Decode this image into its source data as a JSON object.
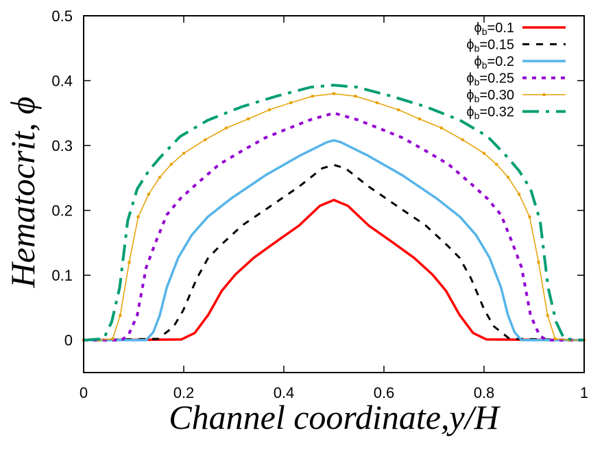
{
  "chart_data": {
    "type": "line",
    "title": "",
    "xlabel": "Channel coordinate,y/H",
    "ylabel": "Hematocrit, ϕ",
    "xlim": [
      0,
      1
    ],
    "ylim": [
      -0.05,
      0.5
    ],
    "xticks": [
      0,
      0.2,
      0.4,
      0.6,
      0.8,
      1
    ],
    "xtick_labels": [
      "0",
      "0.2",
      "0.4",
      "0.6",
      "0.8",
      "1"
    ],
    "yticks": [
      0,
      0.1,
      0.2,
      0.3,
      0.4,
      0.5
    ],
    "ytick_labels": [
      "0",
      "0.1",
      "0.2",
      "0.3",
      "0.4",
      "0.5"
    ],
    "grid": false,
    "legend_position": "top-right",
    "series": [
      {
        "name": "ϕb=0.1",
        "legend_symbol": "ϕ",
        "legend_sub": "b",
        "legend_value": "=0.1",
        "color": "#ff0000",
        "style": "solid",
        "x": [
          0,
          0.195,
          0.222,
          0.249,
          0.276,
          0.303,
          0.34,
          0.385,
          0.431,
          0.472,
          0.5,
          0.528,
          0.569,
          0.615,
          0.66,
          0.697,
          0.724,
          0.751,
          0.778,
          0.805,
          1
        ],
        "y": [
          0,
          0.001,
          0.011,
          0.039,
          0.076,
          0.101,
          0.127,
          0.152,
          0.177,
          0.207,
          0.216,
          0.207,
          0.177,
          0.152,
          0.127,
          0.101,
          0.076,
          0.039,
          0.011,
          0.001,
          0
        ]
      },
      {
        "name": "ϕb=0.15",
        "legend_symbol": "ϕ",
        "legend_sub": "b",
        "legend_value": "=0.15",
        "color": "#000000",
        "style": "dashed",
        "x": [
          0,
          0.149,
          0.18,
          0.199,
          0.226,
          0.249,
          0.272,
          0.317,
          0.363,
          0.431,
          0.477,
          0.5,
          0.523,
          0.569,
          0.637,
          0.683,
          0.728,
          0.751,
          0.774,
          0.801,
          0.82,
          0.851,
          1
        ],
        "y": [
          0,
          0.002,
          0.021,
          0.046,
          0.095,
          0.127,
          0.145,
          0.177,
          0.201,
          0.237,
          0.265,
          0.27,
          0.265,
          0.237,
          0.201,
          0.177,
          0.145,
          0.127,
          0.095,
          0.046,
          0.021,
          0.002,
          0
        ]
      },
      {
        "name": "ϕb=0.2",
        "legend_symbol": "ϕ",
        "legend_sub": "b",
        "legend_value": "=0.2",
        "color": "#56b4e9",
        "style": "solid",
        "x": [
          0,
          0.125,
          0.139,
          0.152,
          0.166,
          0.189,
          0.216,
          0.248,
          0.294,
          0.363,
          0.431,
          0.486,
          0.5,
          0.514,
          0.569,
          0.637,
          0.706,
          0.752,
          0.784,
          0.811,
          0.834,
          0.848,
          0.861,
          0.875,
          1
        ],
        "y": [
          0,
          0,
          0.012,
          0.038,
          0.081,
          0.127,
          0.162,
          0.19,
          0.218,
          0.254,
          0.284,
          0.305,
          0.308,
          0.305,
          0.284,
          0.254,
          0.218,
          0.19,
          0.162,
          0.127,
          0.081,
          0.038,
          0.012,
          0,
          0
        ]
      },
      {
        "name": "ϕb=0.25",
        "legend_symbol": "ϕ",
        "legend_sub": "b",
        "legend_value": "=0.25",
        "color": "#9400d3",
        "style": "dotted",
        "x": [
          0,
          0.075,
          0.089,
          0.107,
          0.125,
          0.144,
          0.166,
          0.193,
          0.226,
          0.271,
          0.317,
          0.363,
          0.408,
          0.454,
          0.5,
          0.546,
          0.592,
          0.637,
          0.683,
          0.729,
          0.774,
          0.807,
          0.834,
          0.856,
          0.875,
          0.893,
          0.911,
          0.925,
          1
        ],
        "y": [
          0,
          0,
          0.007,
          0.038,
          0.112,
          0.151,
          0.193,
          0.218,
          0.241,
          0.271,
          0.292,
          0.312,
          0.326,
          0.34,
          0.35,
          0.34,
          0.326,
          0.312,
          0.292,
          0.271,
          0.241,
          0.218,
          0.193,
          0.151,
          0.112,
          0.038,
          0.007,
          0,
          0
        ]
      },
      {
        "name": "ϕb=0.30",
        "legend_symbol": "ϕ",
        "legend_sub": "b",
        "legend_value": "=0.30",
        "color": "#e69f00",
        "style": "solid-points",
        "x": [
          0,
          0.03,
          0.058,
          0.073,
          0.091,
          0.109,
          0.13,
          0.152,
          0.175,
          0.2,
          0.243,
          0.285,
          0.329,
          0.371,
          0.414,
          0.457,
          0.5,
          0.543,
          0.586,
          0.629,
          0.671,
          0.715,
          0.757,
          0.8,
          0.825,
          0.848,
          0.87,
          0.891,
          0.909,
          0.927,
          0.942,
          0.97,
          1
        ],
        "y": [
          0,
          0,
          0.002,
          0.038,
          0.12,
          0.19,
          0.225,
          0.251,
          0.271,
          0.288,
          0.309,
          0.327,
          0.341,
          0.355,
          0.366,
          0.376,
          0.38,
          0.376,
          0.366,
          0.355,
          0.341,
          0.327,
          0.309,
          0.288,
          0.271,
          0.251,
          0.225,
          0.19,
          0.12,
          0.038,
          0.002,
          0,
          0
        ]
      },
      {
        "name": "ϕb=0.32",
        "legend_symbol": "ϕ",
        "legend_sub": "b",
        "legend_value": "=0.32",
        "color": "#009e73",
        "style": "dash-dot",
        "x": [
          0,
          0.04,
          0.056,
          0.072,
          0.088,
          0.107,
          0.13,
          0.152,
          0.193,
          0.248,
          0.317,
          0.385,
          0.454,
          0.5,
          0.546,
          0.615,
          0.683,
          0.752,
          0.807,
          0.848,
          0.87,
          0.893,
          0.912,
          0.928,
          0.944,
          0.96,
          1
        ],
        "y": [
          0,
          0.002,
          0.028,
          0.081,
          0.184,
          0.233,
          0.261,
          0.281,
          0.314,
          0.339,
          0.36,
          0.376,
          0.39,
          0.393,
          0.39,
          0.376,
          0.36,
          0.339,
          0.314,
          0.281,
          0.261,
          0.233,
          0.184,
          0.081,
          0.028,
          0.002,
          0
        ]
      }
    ]
  }
}
